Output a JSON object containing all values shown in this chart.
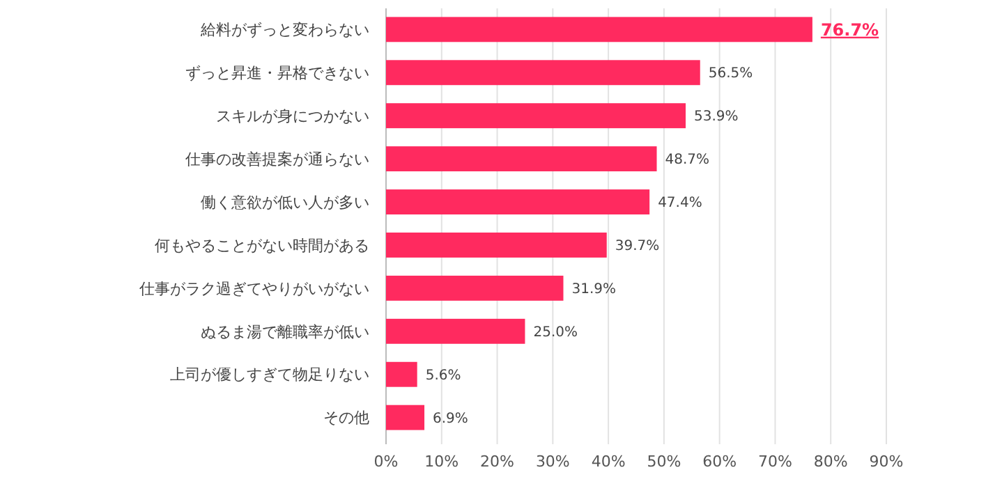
{
  "chart_data": {
    "type": "bar",
    "orientation": "horizontal",
    "categories": [
      "給料がずっと変わらない",
      "ずっと昇進・昇格できない",
      "スキルが身につかない",
      "仕事の改善提案が通らない",
      "働く意欲が低い人が多い",
      "何もやることがない時間がある",
      "仕事がラク過ぎてやりがいがない",
      "ぬるま湯で離職率が低い",
      "上司が優しすぎて物足りない",
      "その他"
    ],
    "values": [
      76.7,
      56.5,
      53.9,
      48.7,
      47.4,
      39.7,
      31.9,
      25.0,
      5.6,
      6.9
    ],
    "value_labels": [
      "76.7%",
      "56.5%",
      "53.9%",
      "48.7%",
      "47.4%",
      "39.7%",
      "31.9%",
      "25.0%",
      "5.6%",
      "6.9%"
    ],
    "color": "#ff2a5f",
    "xlim": [
      0,
      90
    ],
    "xticks": [
      {
        "value": 0,
        "label": "0%"
      },
      {
        "value": 10,
        "label": "10%"
      },
      {
        "value": 20,
        "label": "20%"
      },
      {
        "value": 30,
        "label": "30%"
      },
      {
        "value": 40,
        "label": "40%"
      },
      {
        "value": 50,
        "label": "50%"
      },
      {
        "value": 60,
        "label": "60%"
      },
      {
        "value": 70,
        "label": "70%"
      },
      {
        "value": 80,
        "label": "80%"
      },
      {
        "value": 90,
        "label": "90%"
      }
    ],
    "grid": "x"
  }
}
